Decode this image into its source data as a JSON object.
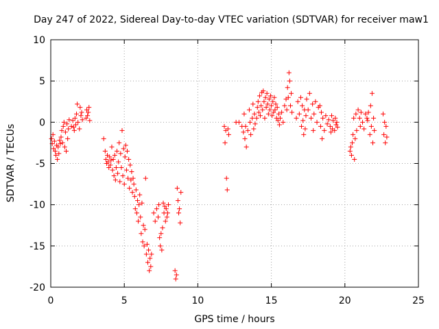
{
  "chart_data": {
    "type": "scatter",
    "title": "Day 247 of 2022, Sidereal Day-to-day VTEC variation (SDTVAR) for receiver maw1",
    "xlabel": "GPS time / hours",
    "ylabel": "SDTVAR / TECUs",
    "xlim": [
      0,
      25
    ],
    "ylim": [
      -20,
      10
    ],
    "x_ticks": [
      0,
      5,
      10,
      15,
      20,
      25
    ],
    "y_ticks": [
      -20,
      -15,
      -10,
      -5,
      0,
      5,
      10
    ],
    "x_tick_labels": [
      "0",
      "5",
      "10",
      "15",
      "20",
      "25"
    ],
    "y_tick_labels": [
      "-20",
      "-15",
      "-10",
      "-5",
      "0",
      "5",
      "10"
    ],
    "grid": true,
    "marker": "+",
    "color": "#ff0000",
    "series": [
      {
        "name": "maw1",
        "points": [
          [
            0.05,
            -2.0
          ],
          [
            0.1,
            -2.6
          ],
          [
            0.15,
            -1.5
          ],
          [
            0.2,
            -3.2
          ],
          [
            0.25,
            -2.3
          ],
          [
            0.3,
            -3.5
          ],
          [
            0.35,
            -4.0
          ],
          [
            0.4,
            -2.8
          ],
          [
            0.45,
            -4.5
          ],
          [
            0.5,
            -3.0
          ],
          [
            0.55,
            -3.8
          ],
          [
            0.6,
            -2.2
          ],
          [
            0.65,
            -2.6
          ],
          [
            0.7,
            -1.8
          ],
          [
            0.75,
            -1.0
          ],
          [
            0.8,
            -2.5
          ],
          [
            0.85,
            -0.5
          ],
          [
            0.9,
            0.0
          ],
          [
            0.95,
            -3.0
          ],
          [
            1.0,
            -1.2
          ],
          [
            1.05,
            -3.5
          ],
          [
            1.1,
            -0.2
          ],
          [
            1.15,
            -2.0
          ],
          [
            1.2,
            -0.8
          ],
          [
            1.25,
            0.3
          ],
          [
            1.4,
            -0.5
          ],
          [
            1.5,
            0.2
          ],
          [
            1.55,
            -0.6
          ],
          [
            1.6,
            -1.0
          ],
          [
            1.65,
            0.5
          ],
          [
            1.7,
            -0.3
          ],
          [
            1.75,
            1.0
          ],
          [
            1.8,
            2.2
          ],
          [
            1.85,
            0.0
          ],
          [
            1.95,
            -0.8
          ],
          [
            2.0,
            1.8
          ],
          [
            2.05,
            0.8
          ],
          [
            2.1,
            1.2
          ],
          [
            2.15,
            0.3
          ],
          [
            2.4,
            0.5
          ],
          [
            2.45,
            1.5
          ],
          [
            2.5,
            0.8
          ],
          [
            2.55,
            1.2
          ],
          [
            2.6,
            1.8
          ],
          [
            2.65,
            0.2
          ],
          [
            3.6,
            -2.0
          ],
          [
            3.7,
            -3.5
          ],
          [
            3.75,
            -4.5
          ],
          [
            3.8,
            -5.0
          ],
          [
            3.85,
            -4.0
          ],
          [
            3.9,
            -4.8
          ],
          [
            3.95,
            -5.5
          ],
          [
            4.0,
            -4.2
          ],
          [
            4.05,
            -5.2
          ],
          [
            4.1,
            -4.6
          ],
          [
            4.15,
            -3.0
          ],
          [
            4.2,
            -5.8
          ],
          [
            4.25,
            -4.5
          ],
          [
            4.3,
            -6.5
          ],
          [
            4.35,
            -4.0
          ],
          [
            4.4,
            -7.0
          ],
          [
            4.45,
            -5.5
          ],
          [
            4.5,
            -3.5
          ],
          [
            4.55,
            -6.2
          ],
          [
            4.6,
            -4.8
          ],
          [
            4.65,
            -2.5
          ],
          [
            4.7,
            -7.2
          ],
          [
            4.75,
            -3.8
          ],
          [
            4.8,
            -5.5
          ],
          [
            4.85,
            -1.0
          ],
          [
            4.9,
            -6.5
          ],
          [
            4.95,
            -3.2
          ],
          [
            5.0,
            -7.5
          ],
          [
            5.05,
            -4.2
          ],
          [
            5.1,
            -2.8
          ],
          [
            5.15,
            -5.8
          ],
          [
            5.2,
            -3.5
          ],
          [
            5.25,
            -6.8
          ],
          [
            5.3,
            -4.5
          ],
          [
            5.35,
            -8.0
          ],
          [
            5.4,
            -5.2
          ],
          [
            5.45,
            -7.0
          ],
          [
            5.5,
            -6.0
          ],
          [
            5.55,
            -8.5
          ],
          [
            5.6,
            -6.8
          ],
          [
            5.65,
            -7.5
          ],
          [
            5.7,
            -9.0
          ],
          [
            5.75,
            -10.5
          ],
          [
            5.8,
            -8.2
          ],
          [
            5.85,
            -11.0
          ],
          [
            5.9,
            -9.5
          ],
          [
            5.95,
            -12.0
          ],
          [
            6.0,
            -10.0
          ],
          [
            6.05,
            -8.8
          ],
          [
            6.1,
            -11.5
          ],
          [
            6.15,
            -13.5
          ],
          [
            6.2,
            -9.8
          ],
          [
            6.25,
            -14.5
          ],
          [
            6.3,
            -12.5
          ],
          [
            6.35,
            -15.0
          ],
          [
            6.4,
            -13.0
          ],
          [
            6.45,
            -6.8
          ],
          [
            6.5,
            -16.0
          ],
          [
            6.55,
            -14.8
          ],
          [
            6.6,
            -17.0
          ],
          [
            6.65,
            -15.5
          ],
          [
            6.7,
            -18.0
          ],
          [
            6.75,
            -16.5
          ],
          [
            6.8,
            -17.5
          ],
          [
            6.85,
            -16.0
          ],
          [
            7.0,
            -11.0
          ],
          [
            7.1,
            -12.0
          ],
          [
            7.2,
            -10.5
          ],
          [
            7.3,
            -11.5
          ],
          [
            7.35,
            -10.0
          ],
          [
            7.4,
            -14.0
          ],
          [
            7.45,
            -15.0
          ],
          [
            7.5,
            -13.5
          ],
          [
            7.55,
            -15.5
          ],
          [
            7.6,
            -12.8
          ],
          [
            7.65,
            -9.8
          ],
          [
            7.7,
            -11.0
          ],
          [
            7.75,
            -10.2
          ],
          [
            7.8,
            -12.0
          ],
          [
            7.85,
            -10.5
          ],
          [
            7.9,
            -11.5
          ],
          [
            7.95,
            -11.0
          ],
          [
            8.0,
            -10.0
          ],
          [
            8.45,
            -18.0
          ],
          [
            8.5,
            -19.0
          ],
          [
            8.55,
            -18.5
          ],
          [
            8.6,
            -8.0
          ],
          [
            8.65,
            -9.5
          ],
          [
            8.7,
            -11.0
          ],
          [
            8.75,
            -10.5
          ],
          [
            8.8,
            -12.2
          ],
          [
            8.85,
            -8.5
          ],
          [
            11.8,
            -0.5
          ],
          [
            11.85,
            -2.5
          ],
          [
            11.9,
            -1.0
          ],
          [
            11.95,
            -6.8
          ],
          [
            12.0,
            -8.2
          ],
          [
            12.05,
            -0.8
          ],
          [
            12.1,
            -1.5
          ],
          [
            12.6,
            0.0
          ],
          [
            12.8,
            0.0
          ],
          [
            13.0,
            -0.5
          ],
          [
            13.1,
            -1.2
          ],
          [
            13.15,
            1.0
          ],
          [
            13.2,
            -2.0
          ],
          [
            13.25,
            -0.5
          ],
          [
            13.3,
            -3.0
          ],
          [
            13.4,
            -1.0
          ],
          [
            13.5,
            1.5
          ],
          [
            13.55,
            0.0
          ],
          [
            13.6,
            -1.5
          ],
          [
            13.7,
            0.5
          ],
          [
            13.75,
            2.2
          ],
          [
            13.8,
            -0.8
          ],
          [
            13.85,
            1.0
          ],
          [
            13.9,
            -0.2
          ],
          [
            14.0,
            0.5
          ],
          [
            14.05,
            1.8
          ],
          [
            14.1,
            2.5
          ],
          [
            14.15,
            1.2
          ],
          [
            14.2,
            3.2
          ],
          [
            14.25,
            0.8
          ],
          [
            14.3,
            2.0
          ],
          [
            14.35,
            3.6
          ],
          [
            14.4,
            1.5
          ],
          [
            14.45,
            3.8
          ],
          [
            14.5,
            2.5
          ],
          [
            14.55,
            0.5
          ],
          [
            14.6,
            3.0
          ],
          [
            14.65,
            1.8
          ],
          [
            14.7,
            3.5
          ],
          [
            14.75,
            2.2
          ],
          [
            14.8,
            1.0
          ],
          [
            14.85,
            2.8
          ],
          [
            14.9,
            1.5
          ],
          [
            14.95,
            3.2
          ],
          [
            15.0,
            2.0
          ],
          [
            15.05,
            0.8
          ],
          [
            15.1,
            2.5
          ],
          [
            15.15,
            1.2
          ],
          [
            15.2,
            3.0
          ],
          [
            15.25,
            1.5
          ],
          [
            15.3,
            2.2
          ],
          [
            15.35,
            0.5
          ],
          [
            15.4,
            1.8
          ],
          [
            15.45,
            0.2
          ],
          [
            15.5,
            1.0
          ],
          [
            15.55,
            -0.3
          ],
          [
            15.6,
            0.5
          ],
          [
            15.7,
            1.2
          ],
          [
            15.8,
            0.0
          ],
          [
            15.9,
            2.0
          ],
          [
            16.0,
            2.8
          ],
          [
            16.05,
            1.5
          ],
          [
            16.1,
            4.2
          ],
          [
            16.15,
            3.0
          ],
          [
            16.2,
            6.0
          ],
          [
            16.25,
            5.0
          ],
          [
            16.3,
            2.0
          ],
          [
            16.35,
            3.5
          ],
          [
            16.4,
            1.2
          ],
          [
            16.7,
            0.5
          ],
          [
            16.8,
            2.5
          ],
          [
            16.9,
            1.0
          ],
          [
            17.0,
            3.0
          ],
          [
            17.05,
            -0.5
          ],
          [
            17.1,
            2.0
          ],
          [
            17.15,
            0.2
          ],
          [
            17.2,
            -1.5
          ],
          [
            17.25,
            1.5
          ],
          [
            17.3,
            -0.8
          ],
          [
            17.35,
            0.8
          ],
          [
            17.4,
            2.8
          ],
          [
            17.5,
            1.5
          ],
          [
            17.6,
            3.5
          ],
          [
            17.7,
            0.5
          ],
          [
            17.8,
            2.2
          ],
          [
            17.85,
            -1.0
          ],
          [
            17.9,
            1.0
          ],
          [
            18.0,
            2.5
          ],
          [
            18.1,
            0.0
          ],
          [
            18.2,
            1.8
          ],
          [
            18.3,
            2.0
          ],
          [
            18.35,
            -0.5
          ],
          [
            18.4,
            1.2
          ],
          [
            18.45,
            -2.0
          ],
          [
            18.5,
            0.5
          ],
          [
            18.6,
            -1.0
          ],
          [
            18.7,
            0.8
          ],
          [
            18.8,
            -0.2
          ],
          [
            18.9,
            0.3
          ],
          [
            19.0,
            -0.5
          ],
          [
            19.05,
            -1.2
          ],
          [
            19.1,
            0.8
          ],
          [
            19.15,
            -0.8
          ],
          [
            19.2,
            0.2
          ],
          [
            19.3,
            -1.0
          ],
          [
            19.35,
            0.5
          ],
          [
            19.4,
            -0.3
          ],
          [
            19.45,
            0.0
          ],
          [
            19.5,
            -0.6
          ],
          [
            20.35,
            -3.5
          ],
          [
            20.4,
            -3.0
          ],
          [
            20.45,
            -4.0
          ],
          [
            20.5,
            -2.5
          ],
          [
            20.55,
            -1.5
          ],
          [
            20.6,
            0.5
          ],
          [
            20.65,
            -4.5
          ],
          [
            20.7,
            -2.0
          ],
          [
            20.75,
            1.0
          ],
          [
            20.8,
            -1.0
          ],
          [
            20.9,
            1.5
          ],
          [
            21.0,
            0.5
          ],
          [
            21.05,
            -0.5
          ],
          [
            21.1,
            1.2
          ],
          [
            21.2,
            0.0
          ],
          [
            21.3,
            -0.8
          ],
          [
            21.4,
            1.0
          ],
          [
            21.5,
            0.5
          ],
          [
            21.55,
            0.2
          ],
          [
            21.6,
            1.2
          ],
          [
            21.7,
            -1.5
          ],
          [
            21.75,
            2.0
          ],
          [
            21.8,
            -0.5
          ],
          [
            21.85,
            3.5
          ],
          [
            21.9,
            -2.5
          ],
          [
            21.95,
            0.5
          ],
          [
            22.0,
            -1.0
          ],
          [
            22.6,
            1.0
          ],
          [
            22.65,
            -1.5
          ],
          [
            22.7,
            0.0
          ],
          [
            22.75,
            -2.5
          ],
          [
            22.8,
            -0.5
          ],
          [
            22.85,
            -1.8
          ]
        ]
      }
    ]
  }
}
